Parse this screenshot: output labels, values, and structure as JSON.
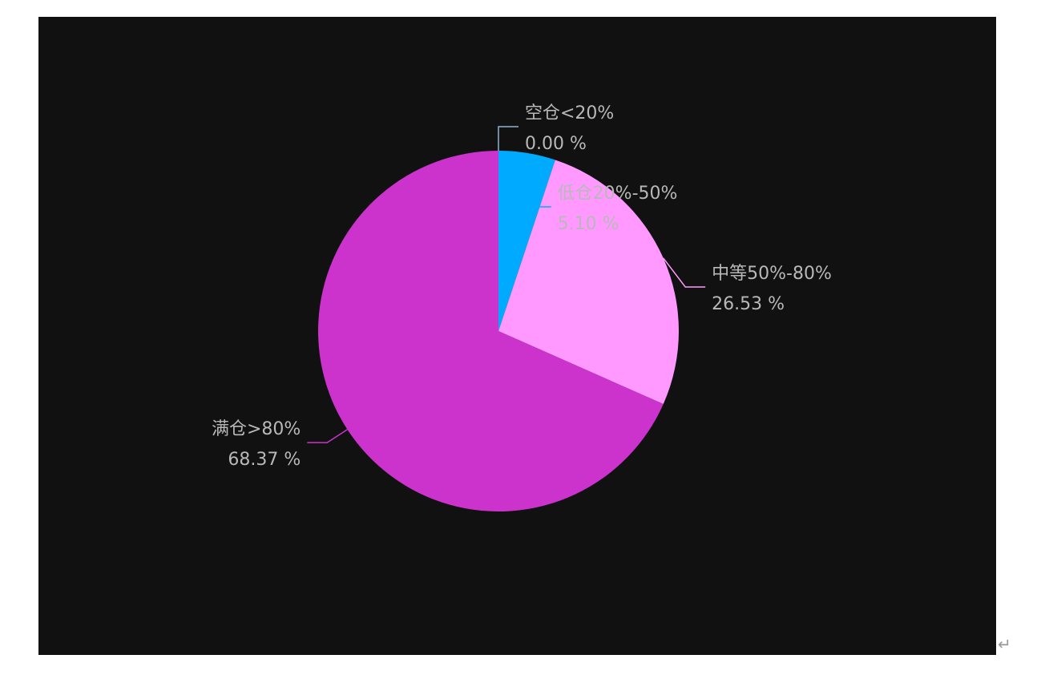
{
  "chart_data": {
    "type": "pie",
    "categories": [
      "空仓<20%",
      "低仓20%-50%",
      "中等50%-80%",
      "满仓>80%"
    ],
    "values": [
      0,
      5.1,
      26.53,
      68.37
    ],
    "value_labels": [
      "0.00 %",
      "5.10 %",
      "26.53 %",
      "68.37 %"
    ],
    "colors": [
      "#8fb4cc",
      "#00aaff",
      "#ff99ff",
      "#cc33cc"
    ]
  },
  "paragraph_mark": "↵"
}
